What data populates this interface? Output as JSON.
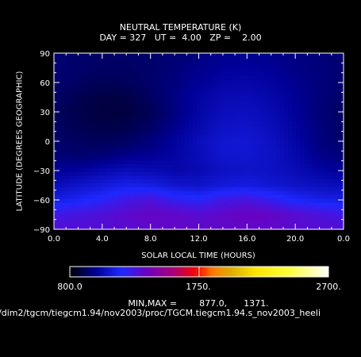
{
  "chart_data": {
    "type": "heatmap",
    "title": "NEUTRAL TEMPERATURE (K)",
    "subtitle": "DAY = 327   UT =  4.00   ZP =    2.00",
    "xlabel": "SOLAR LOCAL TIME (HOURS)",
    "ylabel": "LATITUDE (DEGREES GEOGRAPHIC)",
    "x_ticks": [
      "0.0",
      "4.0",
      "8.0",
      "12.0",
      "16.0",
      "20.0",
      "0.0"
    ],
    "y_ticks": [
      "90",
      "60",
      "30",
      "0",
      "-30",
      "-60",
      "-90"
    ],
    "y_tick_labels": [
      "−90",
      "−60",
      "−30",
      "0",
      "30",
      "60",
      "90"
    ],
    "xlim": [
      0,
      24
    ],
    "ylim": [
      -90,
      90
    ],
    "colorbar": {
      "min_label": "800.0",
      "mid_label": "1750.",
      "max_label": "2700.",
      "range": [
        800,
        2700
      ]
    },
    "min": 877.0,
    "max": 1371.0,
    "grid_x": [
      0,
      2,
      4,
      6,
      8,
      10,
      12,
      14,
      16,
      18,
      20,
      22,
      24
    ],
    "grid_y": [
      90,
      75,
      60,
      45,
      30,
      15,
      0,
      -15,
      -30,
      -45,
      -60,
      -75,
      -90
    ],
    "values": [
      [
        940,
        935,
        930,
        930,
        935,
        945,
        960,
        975,
        980,
        975,
        960,
        950,
        940
      ],
      [
        945,
        935,
        925,
        925,
        935,
        950,
        975,
        995,
        1000,
        990,
        970,
        955,
        945
      ],
      [
        940,
        925,
        910,
        915,
        935,
        960,
        990,
        1015,
        1020,
        1005,
        980,
        955,
        940
      ],
      [
        930,
        905,
        885,
        890,
        920,
        965,
        1010,
        1040,
        1045,
        1025,
        990,
        955,
        930
      ],
      [
        920,
        895,
        878,
        880,
        910,
        960,
        1015,
        1055,
        1060,
        1040,
        995,
        950,
        920
      ],
      [
        925,
        905,
        890,
        895,
        925,
        975,
        1030,
        1075,
        1080,
        1055,
        1005,
        955,
        925
      ],
      [
        935,
        920,
        915,
        925,
        955,
        1000,
        1055,
        1095,
        1100,
        1070,
        1015,
        960,
        935
      ],
      [
        950,
        940,
        950,
        975,
        990,
        1010,
        1050,
        1090,
        1095,
        1075,
        1030,
        975,
        950
      ],
      [
        990,
        1000,
        1030,
        1050,
        1040,
        1025,
        1040,
        1070,
        1080,
        1070,
        1045,
        1010,
        990
      ],
      [
        1050,
        1080,
        1110,
        1140,
        1130,
        1090,
        1080,
        1110,
        1120,
        1100,
        1080,
        1060,
        1050
      ],
      [
        1130,
        1160,
        1200,
        1260,
        1290,
        1230,
        1200,
        1260,
        1280,
        1230,
        1170,
        1140,
        1130
      ],
      [
        1260,
        1280,
        1300,
        1330,
        1350,
        1340,
        1320,
        1340,
        1360,
        1350,
        1320,
        1290,
        1260
      ],
      [
        1300,
        1305,
        1310,
        1320,
        1330,
        1335,
        1335,
        1335,
        1335,
        1330,
        1320,
        1310,
        1300
      ]
    ]
  },
  "footer": {
    "minmax_text": "MIN,MAX =        877.0,      1371.",
    "file_path": "/dim2/tgcm/tiegcm1.94/nov2003/proc/TGCM.tiegcm1.94.s_nov2003_heeli"
  }
}
